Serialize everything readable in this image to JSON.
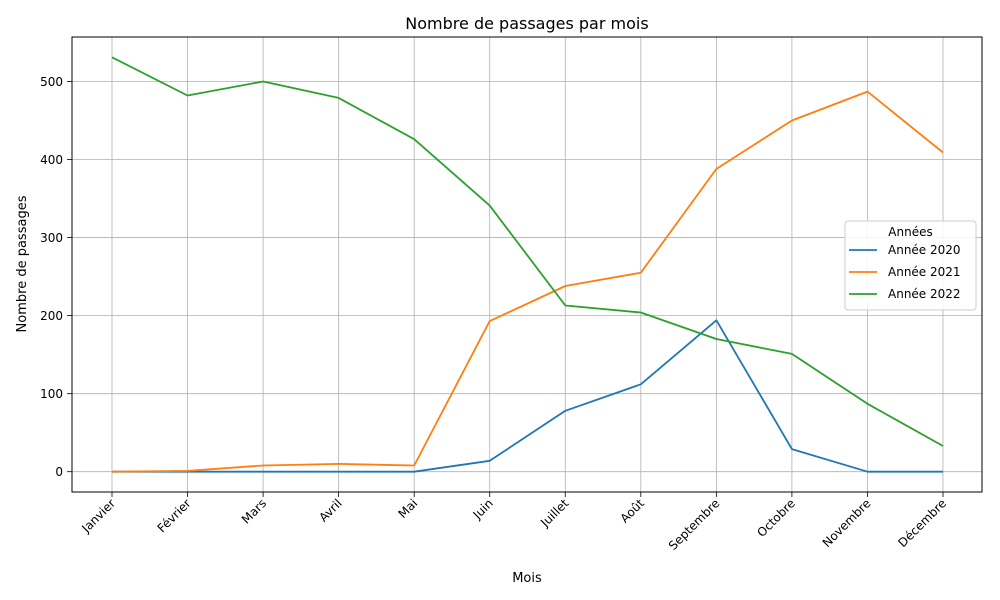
{
  "chart_data": {
    "type": "line",
    "title": "Nombre de passages par mois",
    "xlabel": "Mois",
    "ylabel": "Nombre de passages",
    "categories": [
      "Janvier",
      "Février",
      "Mars",
      "Avril",
      "Mai",
      "Juin",
      "Juillet",
      "Août",
      "Septembre",
      "Octobre",
      "Novembre",
      "Décembre"
    ],
    "ylim": [
      -26,
      557
    ],
    "yticks": [
      0,
      100,
      200,
      300,
      400,
      500
    ],
    "grid": true,
    "legend": {
      "title": "Années",
      "position": "center-right"
    },
    "series": [
      {
        "name": "Année 2020",
        "color": "#1f77b4",
        "values": [
          0,
          0,
          0,
          0,
          0,
          14,
          78,
          112,
          194,
          29,
          0,
          0
        ]
      },
      {
        "name": "Année 2021",
        "color": "#ff7f0e",
        "values": [
          0,
          1,
          8,
          10,
          8,
          193,
          238,
          255,
          388,
          450,
          487,
          409
        ]
      },
      {
        "name": "Année 2022",
        "color": "#2ca02c",
        "values": [
          531,
          482,
          500,
          479,
          426,
          341,
          213,
          204,
          170,
          151,
          87,
          33
        ]
      }
    ]
  }
}
